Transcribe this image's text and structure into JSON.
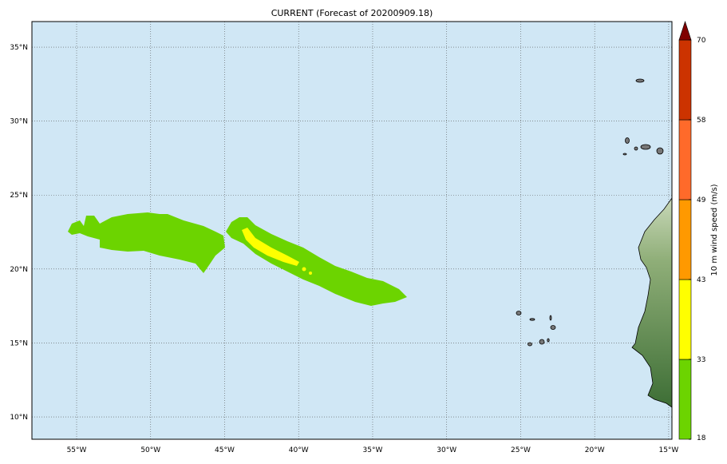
{
  "map": {
    "title": "CURRENT (Forecast of 20200909.18)",
    "xlim": [
      -58.02,
      -14.78
    ],
    "ylim": [
      8.49,
      36.73
    ],
    "lon_ticks": [
      {
        "value": -55,
        "label": "55°W"
      },
      {
        "value": -50,
        "label": "50°W"
      },
      {
        "value": -45,
        "label": "45°W"
      },
      {
        "value": -40,
        "label": "40°W"
      },
      {
        "value": -35,
        "label": "35°W"
      },
      {
        "value": -30,
        "label": "30°W"
      },
      {
        "value": -25,
        "label": "25°W"
      },
      {
        "value": -20,
        "label": "20°W"
      },
      {
        "value": -15,
        "label": "15°W"
      }
    ],
    "lat_ticks": [
      {
        "value": 35,
        "label": "35°N"
      },
      {
        "value": 30,
        "label": "30°N"
      },
      {
        "value": 25,
        "label": "25°N"
      },
      {
        "value": 20,
        "label": "20°N"
      },
      {
        "value": 15,
        "label": "15°N"
      },
      {
        "value": 10,
        "label": "10°N"
      }
    ],
    "grid": true
  },
  "colorbar": {
    "label": "10 m wind speed (m/s)",
    "ticks": [
      18,
      33,
      43,
      49,
      58,
      70
    ],
    "colors": [
      "#6cd400",
      "#ffff00",
      "#ff9900",
      "#ff6a2a",
      "#cc3300"
    ],
    "extend_color": "#800000"
  }
}
